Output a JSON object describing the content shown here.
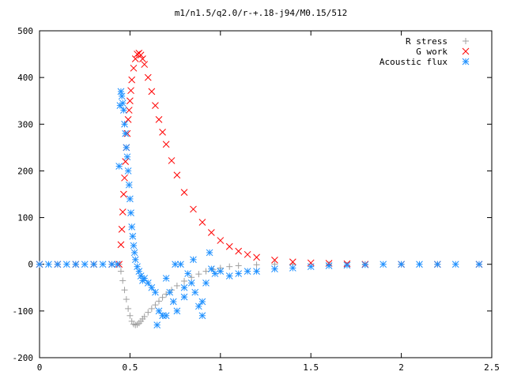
{
  "chart_data": {
    "type": "scatter",
    "title": "m1/n1.5/q2.0/r-+.18-j94/M0.15/512",
    "xlabel": "",
    "ylabel": "",
    "xlim": [
      0,
      2.5
    ],
    "ylim": [
      -200,
      500
    ],
    "x_ticks": [
      0,
      0.5,
      1,
      1.5,
      2,
      2.5
    ],
    "x_tick_labels": [
      "0",
      "0.5",
      "1",
      "1.5",
      "2",
      "2.5"
    ],
    "y_ticks": [
      -200,
      -100,
      0,
      100,
      200,
      300,
      400,
      500
    ],
    "y_tick_labels": [
      "-200",
      "-100",
      "0",
      "100",
      "200",
      "300",
      "400",
      "500"
    ],
    "grid": false,
    "legend_position": "top-right",
    "series": [
      {
        "name": "R stress",
        "marker": "plus",
        "color": "#a0a0a0",
        "x": [
          0.0,
          0.1,
          0.2,
          0.3,
          0.4,
          0.44,
          0.45,
          0.46,
          0.47,
          0.48,
          0.49,
          0.5,
          0.51,
          0.52,
          0.53,
          0.54,
          0.55,
          0.56,
          0.57,
          0.58,
          0.6,
          0.62,
          0.64,
          0.66,
          0.68,
          0.7,
          0.73,
          0.76,
          0.8,
          0.84,
          0.88,
          0.92,
          0.96,
          1.0,
          1.05,
          1.1,
          1.2,
          1.3,
          1.4,
          1.6,
          1.8,
          2.0,
          2.2,
          2.43
        ],
        "y": [
          0,
          0,
          0,
          0,
          0,
          0,
          -15,
          -35,
          -55,
          -75,
          -95,
          -110,
          -122,
          -128,
          -130,
          -129,
          -126,
          -122,
          -117,
          -112,
          -103,
          -95,
          -87,
          -79,
          -71,
          -64,
          -55,
          -46,
          -36,
          -28,
          -21,
          -15,
          -11,
          -8,
          -5,
          -3,
          -1,
          0,
          0,
          0,
          0,
          0,
          0,
          0
        ]
      },
      {
        "name": "G work",
        "marker": "cross",
        "color": "#ff0000",
        "x": [
          0.0,
          0.1,
          0.2,
          0.3,
          0.4,
          0.44,
          0.45,
          0.455,
          0.46,
          0.465,
          0.47,
          0.475,
          0.48,
          0.485,
          0.49,
          0.495,
          0.5,
          0.505,
          0.51,
          0.52,
          0.53,
          0.54,
          0.55,
          0.56,
          0.57,
          0.58,
          0.6,
          0.62,
          0.64,
          0.66,
          0.68,
          0.7,
          0.73,
          0.76,
          0.8,
          0.85,
          0.9,
          0.95,
          1.0,
          1.05,
          1.1,
          1.15,
          1.2,
          1.3,
          1.4,
          1.5,
          1.6,
          1.7,
          1.8,
          2.0,
          2.2,
          2.43
        ],
        "y": [
          0,
          0,
          0,
          0,
          0,
          0,
          42,
          75,
          112,
          150,
          185,
          220,
          250,
          280,
          310,
          330,
          350,
          372,
          395,
          420,
          440,
          450,
          452,
          448,
          440,
          428,
          400,
          370,
          340,
          310,
          283,
          257,
          222,
          191,
          154,
          118,
          90,
          68,
          51,
          38,
          28,
          21,
          15,
          9,
          5,
          3,
          2,
          1,
          0,
          0,
          0,
          0
        ]
      },
      {
        "name": "Acoustic flux",
        "marker": "star",
        "color": "#1e90ff",
        "x": [
          0.0,
          0.05,
          0.1,
          0.15,
          0.2,
          0.25,
          0.3,
          0.35,
          0.4,
          0.43,
          0.44,
          0.445,
          0.45,
          0.455,
          0.46,
          0.465,
          0.47,
          0.475,
          0.48,
          0.485,
          0.49,
          0.495,
          0.5,
          0.505,
          0.51,
          0.515,
          0.52,
          0.525,
          0.53,
          0.54,
          0.55,
          0.56,
          0.57,
          0.58,
          0.6,
          0.62,
          0.64,
          0.65,
          0.66,
          0.68,
          0.7,
          0.7,
          0.72,
          0.74,
          0.75,
          0.76,
          0.78,
          0.8,
          0.8,
          0.82,
          0.84,
          0.85,
          0.86,
          0.88,
          0.9,
          0.9,
          0.92,
          0.94,
          0.95,
          0.97,
          1.0,
          1.05,
          1.1,
          1.15,
          1.2,
          1.3,
          1.4,
          1.5,
          1.6,
          1.7,
          1.8,
          1.9,
          2.0,
          2.1,
          2.2,
          2.3,
          2.43
        ],
        "y": [
          0,
          0,
          0,
          0,
          0,
          0,
          0,
          0,
          0,
          0,
          210,
          340,
          370,
          360,
          345,
          330,
          300,
          280,
          250,
          230,
          200,
          170,
          140,
          110,
          80,
          60,
          40,
          25,
          10,
          -5,
          -15,
          -25,
          -35,
          -30,
          -40,
          -50,
          -60,
          -130,
          -100,
          -110,
          -110,
          -30,
          -60,
          -80,
          0,
          -100,
          0,
          -50,
          -70,
          -20,
          -40,
          10,
          -60,
          -90,
          -80,
          -110,
          -40,
          25,
          -10,
          -20,
          -15,
          -25,
          -20,
          -15,
          -15,
          -10,
          -8,
          -5,
          -3,
          -2,
          -1,
          0,
          0,
          0,
          0,
          0,
          0
        ]
      }
    ]
  }
}
